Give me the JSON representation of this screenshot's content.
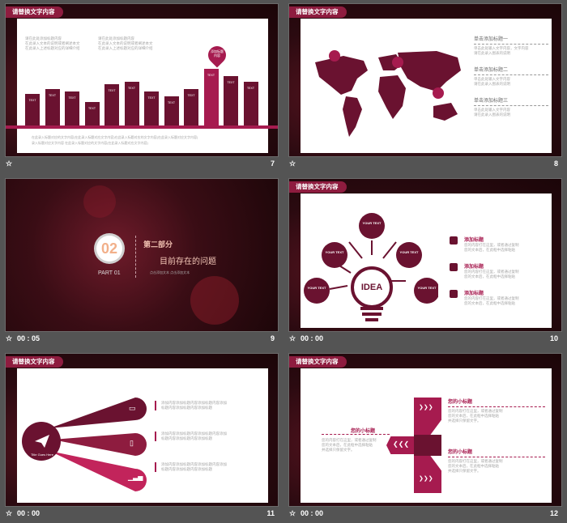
{
  "colors": {
    "wine": "#6a1230",
    "rose": "#a61b4f",
    "bg": "#545454"
  },
  "slides": {
    "s7": {
      "tag": "请替换文字内容",
      "col1": "请在此处添加标题内容\n在此录入文本的说明或者阐述本文\n在此录入上述标题对应的详细介绍",
      "col2": "请在此处添加标题内容\n在此录入文本的说明或者阐述本文\n在此录入上述标题对应的详细介绍",
      "bars": [
        54,
        62,
        58,
        40,
        70,
        74,
        58,
        50,
        62,
        96,
        84,
        74
      ],
      "bar_label": "TEXT",
      "bubble": "添加标题内容",
      "footer1": "在此录入标题对应的文字内容(在此录入标题对应文字内容)在此录入标题对应的文字内容(在此录入标题对应文字内容)",
      "footer2": "录入标题对应文字内容 在此录入标题对应的文字内容(在此录入标题对应文字内容)",
      "number": "7"
    },
    "s8": {
      "tag": "请替换文字内容",
      "items": [
        {
          "title": "单击添加标题一",
          "desc": "单击此处输入文字内容，文字内容\n请在此录入图表的说明"
        },
        {
          "title": "单击添加标题二",
          "desc": "单击此处输入文字内容\n请在此录入图表的说明"
        },
        {
          "title": "单击添加标题三",
          "desc": "单击此处输入文字内容\n请在此录入图表的说明"
        }
      ],
      "number": "8"
    },
    "s9": {
      "badge": "02",
      "part": "PART 01",
      "title": "第二部分",
      "subtitle": "目前存在的问题",
      "dots": "点击添加文本 点击添加文本",
      "time": "00 : 05",
      "number": "9"
    },
    "s10": {
      "tag": "请替换文字内容",
      "center": "IDEA",
      "nodes": [
        "YOUR TEXT",
        "YOUR TEXT",
        "YOUR TEXT",
        "YOUR TEXT",
        "YOUR TEXT"
      ],
      "items": [
        {
          "title": "添加标题",
          "desc": "您的内容打在这里，或者通过复制\n您的文本后，在此框中选择粘贴"
        },
        {
          "title": "添加标题",
          "desc": "您的内容打在这里，或者通过复制\n您的文本后，在此框中选择粘贴"
        },
        {
          "title": "添加标题",
          "desc": "您的内容打在这里，或者通过复制\n您的文本后，在此框中选择粘贴"
        }
      ],
      "time": "00 : 00",
      "number": "10"
    },
    "s11": {
      "tag": "请替换文字内容",
      "circle": "Title Goes Here",
      "texts": [
        "添加内容添加标题内容添加标题内容添加\n标题内容添加标题内容添加标题",
        "添加内容添加标题内容添加标题内容添加\n标题内容添加标题内容添加标题",
        "添加内容添加标题内容添加标题内容添加\n标题内容添加标题内容添加标题"
      ],
      "time": "00 : 00",
      "number": "11"
    },
    "s12": {
      "tag": "请替换文字内容",
      "left_title": "您的小标题",
      "left_desc": "您的内容打在这里，或者通过复制\n您的文本后，在此框中选择粘贴\n并选择只保留文字。",
      "right": [
        {
          "title": "您的小标题",
          "desc": "您的内容打在这里，或者通过复制\n您的文本后，在此框中选择粘贴\n并选择只保留文字。"
        },
        {
          "title": "您的小标题",
          "desc": "您的内容打在这里，或者通过复制\n您的文本后，在此框中选择粘贴\n并选择只保留文字。"
        }
      ],
      "time": "00 : 00",
      "number": "12"
    }
  },
  "icons": {
    "star": "☆",
    "arrows": "❯❯❯",
    "back": "❮❮❮"
  }
}
